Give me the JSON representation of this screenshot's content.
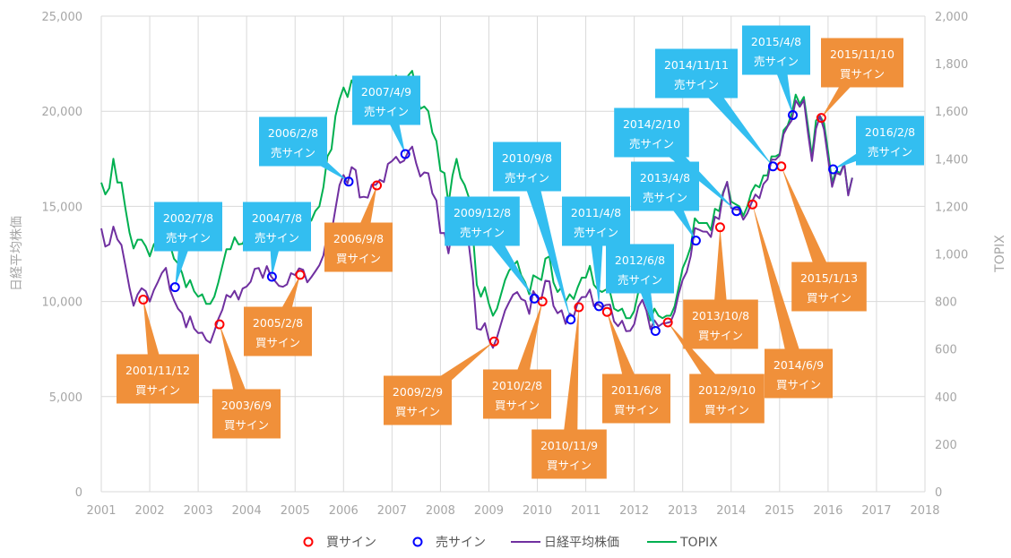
{
  "chart_data": {
    "type": "line",
    "title": "",
    "xlabel": "",
    "ylabel": "日経平均株価",
    "y2label": "TOPIX",
    "xlim": [
      2001,
      2018
    ],
    "ylim": [
      0,
      25000
    ],
    "y2lim": [
      0,
      2000
    ],
    "x_ticks": [
      "2001",
      "2002",
      "2003",
      "2004",
      "2005",
      "2006",
      "2007",
      "2008",
      "2009",
      "2010",
      "2011",
      "2012",
      "2013",
      "2014",
      "2015",
      "2016",
      "2017",
      "2018"
    ],
    "y_ticks": [
      "0",
      "5,000",
      "10,000",
      "15,000",
      "20,000",
      "25,000"
    ],
    "y2_ticks": [
      "0",
      "200",
      "400",
      "600",
      "800",
      "1,000",
      "1,200",
      "1,400",
      "1,600",
      "1,800",
      "2,000"
    ],
    "grid": true,
    "legend_position": "bottom",
    "legend": [
      "買サイン",
      "売サイン",
      "日経平均株価",
      "TOPIX"
    ],
    "colors": {
      "nikkei": "#7030a0",
      "topix": "#00b050",
      "buy": "#ff0000",
      "sell": "#0000ff",
      "buy_callout": "#f0903a",
      "sell_callout": "#33bef0"
    },
    "series": [
      {
        "name": "日経平均株価",
        "axis": "left",
        "start": 2001,
        "step_months": 1,
        "values": [
          13844,
          12884,
          12999,
          13934,
          13262,
          12969,
          11860,
          10713,
          9775,
          10366,
          10697,
          10543,
          9997,
          10587,
          11024,
          11492,
          11764,
          10621,
          10066,
          9619,
          9383,
          8640,
          9216,
          8579,
          8340,
          8363,
          7973,
          7831,
          8425,
          9083,
          9563,
          10344,
          10219,
          10560,
          10101,
          10677,
          10784,
          11042,
          11715,
          11762,
          11237,
          11859,
          11326,
          11082,
          10824,
          10771,
          10899,
          11489,
          11388,
          11741,
          11669,
          11009,
          11277,
          11584,
          11900,
          12414,
          13574,
          13607,
          14872,
          16111,
          16650,
          16205,
          17060,
          16906,
          15467,
          15505,
          15457,
          16141,
          16128,
          16399,
          16274,
          17226,
          17383,
          17604,
          17288,
          17400,
          17876,
          18138,
          17249,
          16569,
          16786,
          16737,
          15681,
          15308,
          13592,
          13603,
          12526,
          13850,
          14339,
          13481,
          13377,
          13073,
          11260,
          8577,
          8512,
          8860,
          7994,
          7568,
          8110,
          8828,
          9523,
          9958,
          10357,
          10493,
          10133,
          10035,
          9346,
          10546,
          10198,
          10126,
          11090,
          11057,
          9769,
          9383,
          9537,
          8824,
          9369,
          9202,
          9937,
          10229,
          10238,
          10624,
          9755,
          9850,
          9694,
          9816,
          9833,
          8955,
          8700,
          8988,
          8435,
          8455,
          8803,
          9723,
          10084,
          9521,
          8543,
          9007,
          8695,
          8840,
          8870,
          8928,
          9446,
          10395,
          11139,
          11559,
          12398,
          13861,
          13775,
          13677,
          13668,
          13389,
          14456,
          14328,
          15662,
          16291,
          14915,
          14841,
          14828,
          14304,
          14632,
          15162,
          15621,
          15425,
          16174,
          16414,
          17460,
          17451,
          17674,
          18798,
          19207,
          19520,
          20563,
          20236,
          20585,
          18890,
          17388,
          19083,
          19747,
          19034,
          17518,
          16027,
          16759,
          16666,
          17235,
          15576,
          16500
        ]
      },
      {
        "name": "TOPIX",
        "axis": "right",
        "start": 2001,
        "step_months": 1,
        "values": [
          1300,
          1250,
          1277,
          1400,
          1300,
          1300,
          1190,
          1090,
          1023,
          1060,
          1060,
          1032,
          990,
          1040,
          1060,
          1090,
          1140,
          1040,
          980,
          960,
          920,
          860,
          890,
          843,
          820,
          830,
          790,
          790,
          820,
          880,
          950,
          1020,
          1020,
          1070,
          1040,
          1043,
          1080,
          1110,
          1180,
          1190,
          1130,
          1190,
          1140,
          1130,
          1100,
          1100,
          1130,
          1149,
          1150,
          1180,
          1180,
          1130,
          1140,
          1180,
          1200,
          1280,
          1410,
          1440,
          1580,
          1650,
          1700,
          1660,
          1730,
          1700,
          1580,
          1580,
          1560,
          1630,
          1610,
          1620,
          1600,
          1680,
          1710,
          1750,
          1710,
          1700,
          1750,
          1770,
          1690,
          1610,
          1620,
          1600,
          1510,
          1475,
          1350,
          1340,
          1210,
          1330,
          1400,
          1320,
          1290,
          1240,
          1090,
          870,
          820,
          860,
          790,
          740,
          770,
          830,
          890,
          930,
          950,
          970,
          910,
          880,
          830,
          910,
          900,
          890,
          980,
          990,
          880,
          840,
          860,
          800,
          830,
          810,
          860,
          900,
          900,
          950,
          870,
          850,
          840,
          850,
          840,
          770,
          760,
          770,
          730,
          730,
          760,
          840,
          850,
          800,
          720,
          770,
          740,
          730,
          740,
          740,
          780,
          860,
          940,
          980,
          1030,
          1150,
          1130,
          1130,
          1130,
          1100,
          1190,
          1180,
          1260,
          1300,
          1220,
          1210,
          1200,
          1160,
          1200,
          1260,
          1290,
          1280,
          1330,
          1330,
          1410,
          1410,
          1420,
          1520,
          1540,
          1590,
          1670,
          1630,
          1660,
          1540,
          1410,
          1560,
          1580,
          1550,
          1430,
          1300,
          1350,
          1340,
          1380,
          1250,
          1320
        ]
      }
    ],
    "buy_signals": [
      {
        "date": "2001/11/12",
        "label": "買サイン",
        "value": 10100
      },
      {
        "date": "2003/6/9",
        "label": "買サイン",
        "value": 8800
      },
      {
        "date": "2005/2/8",
        "label": "買サイン",
        "value": 11400
      },
      {
        "date": "2006/9/8",
        "label": "買サイン",
        "value": 16100
      },
      {
        "date": "2009/2/9",
        "label": "買サイン",
        "value": 7900
      },
      {
        "date": "2010/2/8",
        "label": "買サイン",
        "value": 10000
      },
      {
        "date": "2010/11/9",
        "label": "買サイン",
        "value": 9700
      },
      {
        "date": "2011/6/8",
        "label": "買サイン",
        "value": 9450
      },
      {
        "date": "2012/9/10",
        "label": "買サイン",
        "value": 8900
      },
      {
        "date": "2013/10/8",
        "label": "買サイン",
        "value": 13900
      },
      {
        "date": "2014/6/9",
        "label": "買サイン",
        "value": 15100
      },
      {
        "date": "2015/1/13",
        "label": "買サイン",
        "value": 17100
      },
      {
        "date": "2015/11/10",
        "label": "買サイン",
        "value": 19650
      }
    ],
    "sell_signals": [
      {
        "date": "2002/7/8",
        "label": "売サイン",
        "value": 10750
      },
      {
        "date": "2004/7/8",
        "label": "売サイン",
        "value": 11300
      },
      {
        "date": "2006/2/8",
        "label": "売サイン",
        "value": 16300
      },
      {
        "date": "2007/4/9",
        "label": "売サイン",
        "value": 17750
      },
      {
        "date": "2009/12/8",
        "label": "売サイン",
        "value": 10150
      },
      {
        "date": "2010/9/8",
        "label": "売サイン",
        "value": 9050
      },
      {
        "date": "2011/4/8",
        "label": "売サイン",
        "value": 9750
      },
      {
        "date": "2012/6/8",
        "label": "売サイン",
        "value": 8450
      },
      {
        "date": "2013/4/8",
        "label": "売サイン",
        "value": 13200
      },
      {
        "date": "2014/2/10",
        "label": "売サイン",
        "value": 14750
      },
      {
        "date": "2014/11/11",
        "label": "売サイン",
        "value": 17100
      },
      {
        "date": "2015/4/8",
        "label": "売サイン",
        "value": 19800
      },
      {
        "date": "2016/2/8",
        "label": "売サイン",
        "value": 16950
      }
    ]
  }
}
